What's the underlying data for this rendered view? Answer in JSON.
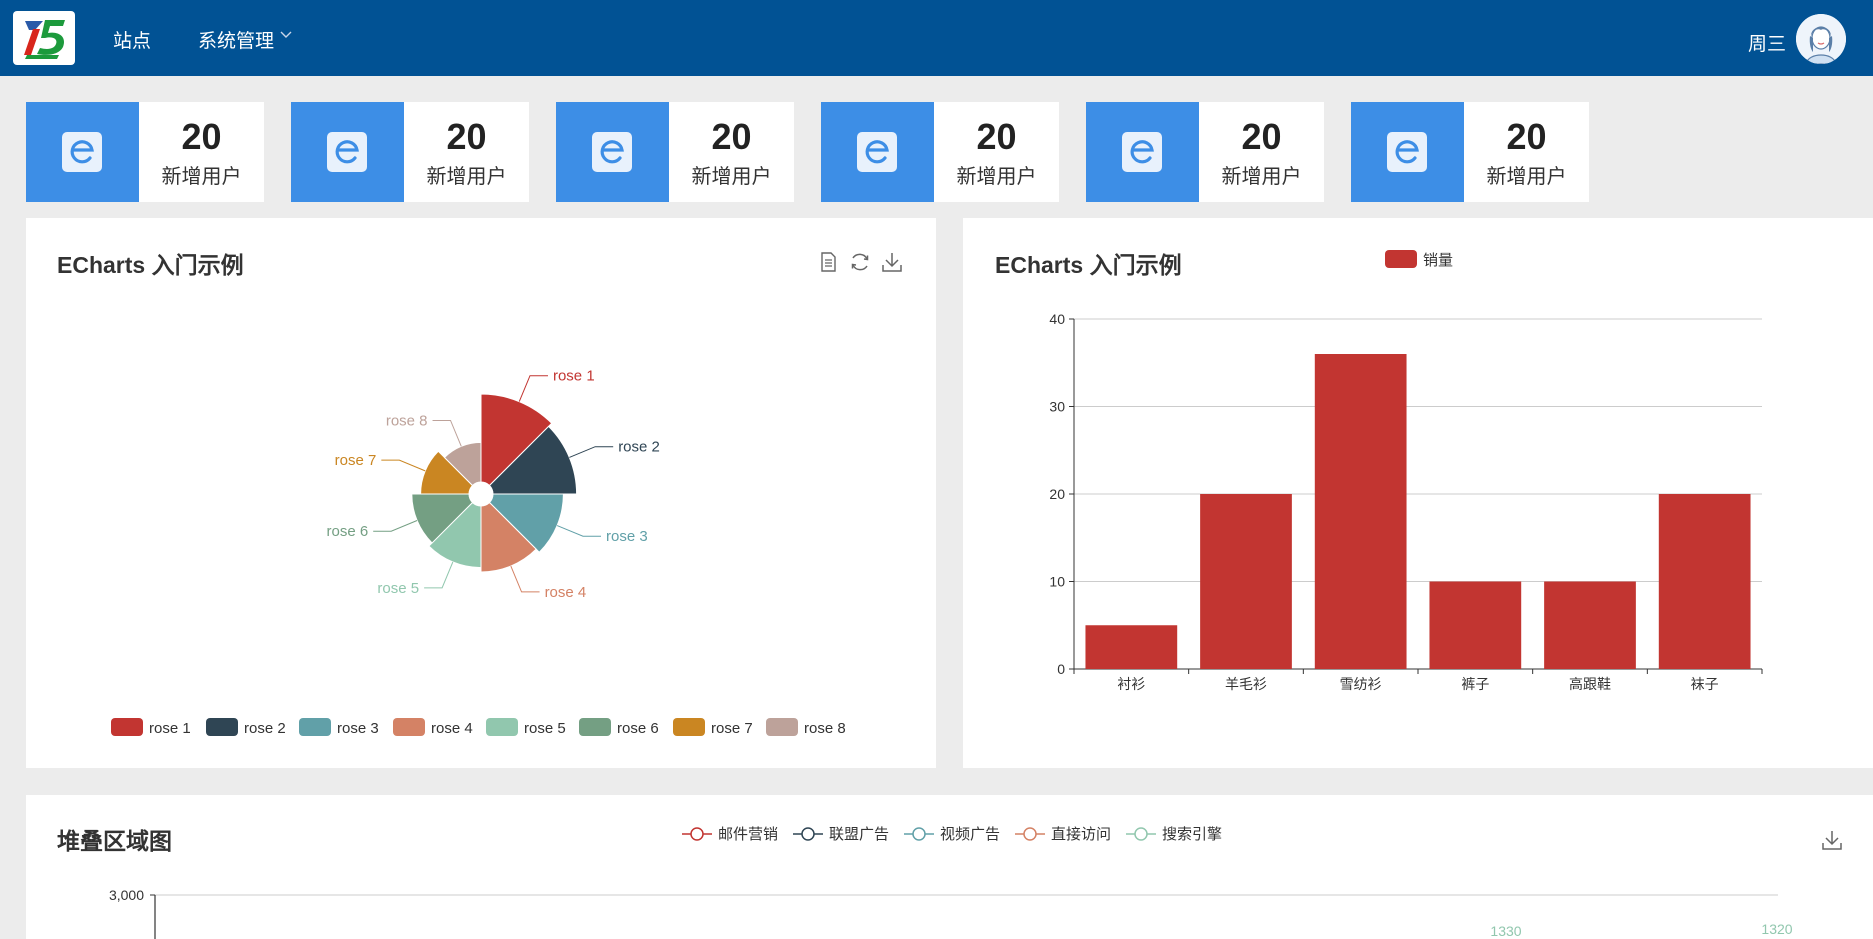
{
  "header": {
    "nav": [
      {
        "label": "站点"
      },
      {
        "label": "系统管理"
      }
    ],
    "username": "周三"
  },
  "stats": [
    {
      "value": "20",
      "label": "新增用户"
    },
    {
      "value": "20",
      "label": "新增用户"
    },
    {
      "value": "20",
      "label": "新增用户"
    },
    {
      "value": "20",
      "label": "新增用户"
    },
    {
      "value": "20",
      "label": "新增用户"
    },
    {
      "value": "20",
      "label": "新增用户"
    }
  ],
  "pie_panel": {
    "title": "ECharts 入门示例"
  },
  "bar_panel": {
    "title": "ECharts 入门示例"
  },
  "area_panel": {
    "title": "堆叠区域图"
  },
  "colors": {
    "header": "#015294",
    "stat_icon_bg": "#3d8ee6",
    "bar": "#c23531"
  },
  "chart_data": [
    {
      "type": "pie",
      "roseType": "radius",
      "categories": [
        "rose 1",
        "rose 2",
        "rose 3",
        "rose 4",
        "rose 5",
        "rose 6",
        "rose 7",
        "rose 8"
      ],
      "values": [
        40,
        38,
        32,
        30,
        28,
        26,
        22,
        18
      ],
      "colors": [
        "#c23531",
        "#2f4554",
        "#61a0a8",
        "#d48265",
        "#91c7ae",
        "#749f83",
        "#ca8622",
        "#bda29a"
      ],
      "legend": [
        "rose 1",
        "rose 2",
        "rose 3",
        "rose 4",
        "rose 5",
        "rose 6",
        "rose 7",
        "rose 8"
      ],
      "legend_position": "bottom"
    },
    {
      "type": "bar",
      "categories": [
        "衬衫",
        "羊毛衫",
        "雪纺衫",
        "裤子",
        "高跟鞋",
        "袜子"
      ],
      "series": [
        {
          "name": "销量",
          "values": [
            5,
            20,
            36,
            10,
            10,
            20
          ]
        }
      ],
      "ylim": [
        0,
        40
      ],
      "yticks": [
        0,
        10,
        20,
        30,
        40
      ],
      "grid": true,
      "legend_position": "top"
    },
    {
      "type": "area",
      "stacked": true,
      "legend": [
        "邮件营销",
        "联盟广告",
        "视频广告",
        "直接访问",
        "搜索引擎"
      ],
      "legend_colors": [
        "#c23531",
        "#2f4554",
        "#61a0a8",
        "#d48265",
        "#91c7ae"
      ],
      "yticks_visible": [
        "3,000"
      ],
      "data_labels_visible": [
        "1330",
        "1320"
      ]
    }
  ]
}
